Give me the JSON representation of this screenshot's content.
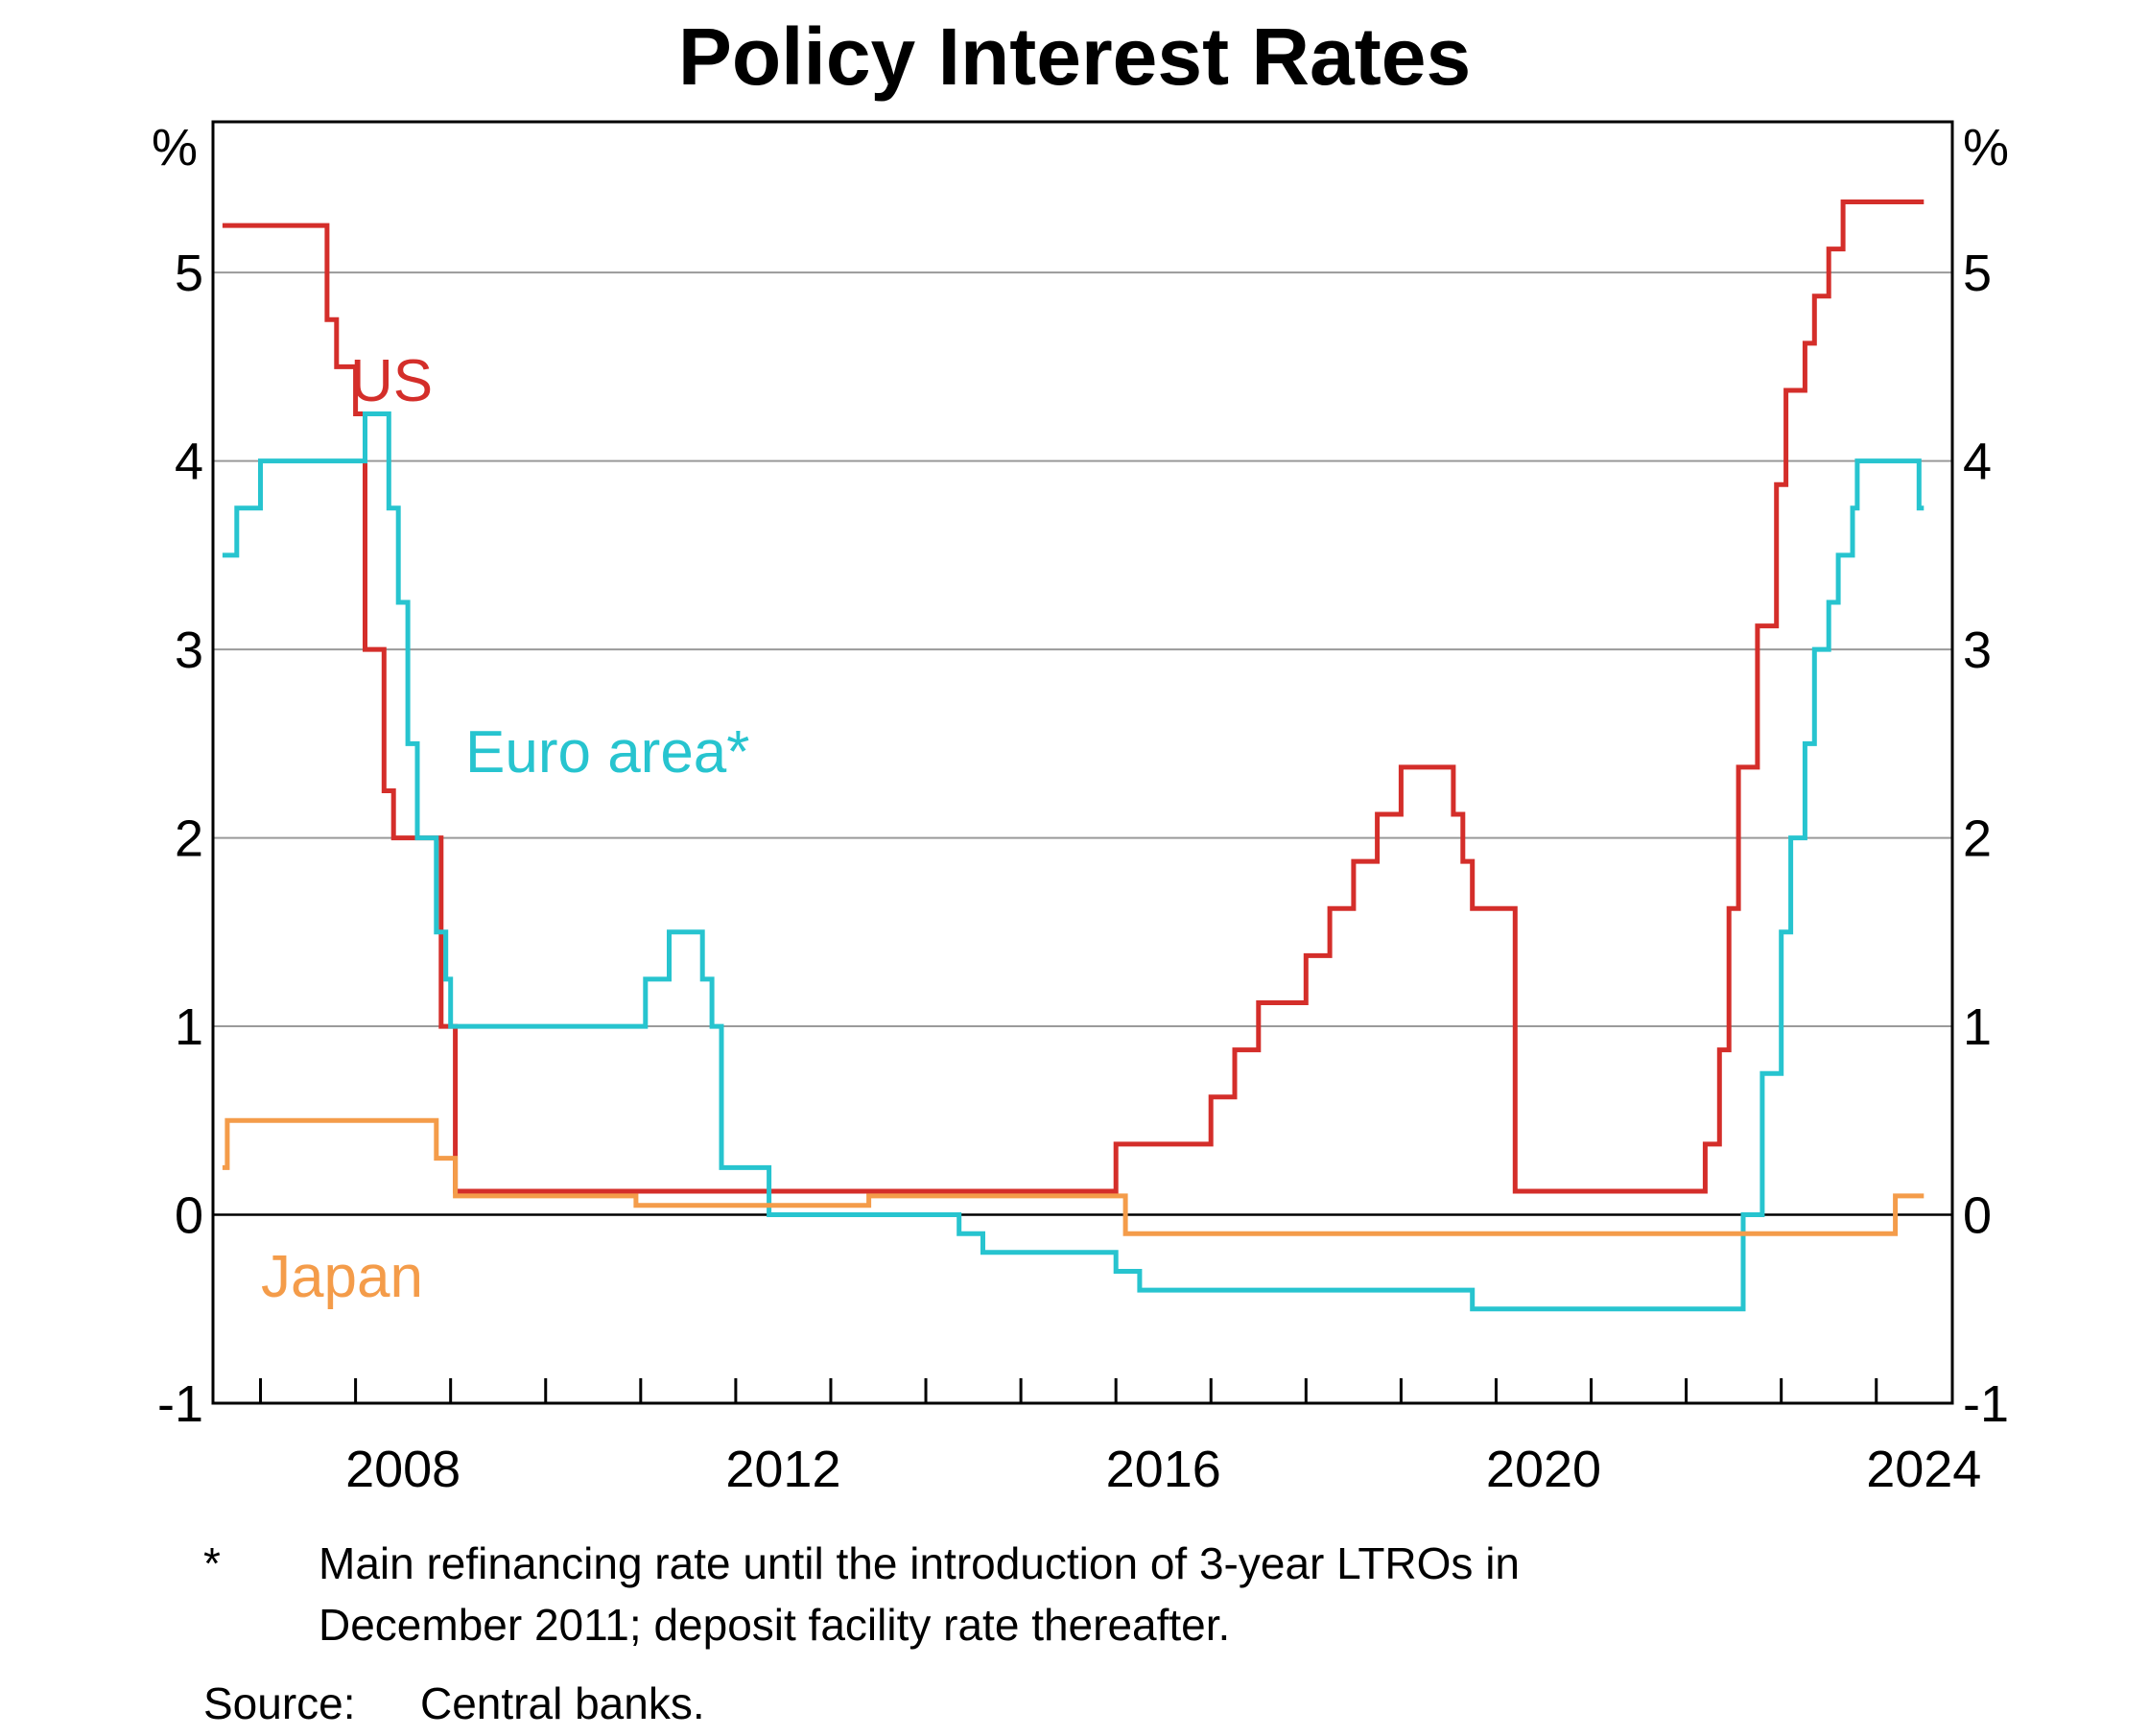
{
  "chart_data": {
    "type": "line",
    "title": "Policy Interest Rates",
    "y_unit_label": "%",
    "ylim": [
      -1,
      5.8
    ],
    "y_ticks": [
      -1,
      0,
      1,
      2,
      3,
      4,
      5
    ],
    "xlim": [
      2006.5,
      2024.8
    ],
    "x_major_tick_labels": [
      "2008",
      "2012",
      "2016",
      "2020",
      "2024"
    ],
    "x_minor_ticks_per_year": true,
    "step_lines": true,
    "grid": "horizontal",
    "series": [
      {
        "name": "US",
        "color": "#d42e2a",
        "points": [
          [
            2006.6,
            5.25
          ],
          [
            2007.7,
            4.75
          ],
          [
            2007.8,
            4.5
          ],
          [
            2008.0,
            4.25
          ],
          [
            2008.1,
            3.0
          ],
          [
            2008.3,
            2.25
          ],
          [
            2008.4,
            2.0
          ],
          [
            2008.9,
            1.0
          ],
          [
            2009.05,
            0.125
          ],
          [
            2016.0,
            0.375
          ],
          [
            2017.0,
            0.625
          ],
          [
            2017.25,
            0.875
          ],
          [
            2017.5,
            1.125
          ],
          [
            2018.0,
            1.375
          ],
          [
            2018.25,
            1.625
          ],
          [
            2018.5,
            1.875
          ],
          [
            2018.75,
            2.125
          ],
          [
            2019.0,
            2.375
          ],
          [
            2019.55,
            2.125
          ],
          [
            2019.65,
            1.875
          ],
          [
            2019.75,
            1.625
          ],
          [
            2020.2,
            0.125
          ],
          [
            2022.2,
            0.375
          ],
          [
            2022.35,
            0.875
          ],
          [
            2022.45,
            1.625
          ],
          [
            2022.55,
            2.375
          ],
          [
            2022.75,
            3.125
          ],
          [
            2022.95,
            3.875
          ],
          [
            2023.05,
            4.375
          ],
          [
            2023.25,
            4.625
          ],
          [
            2023.35,
            4.875
          ],
          [
            2023.5,
            5.125
          ],
          [
            2023.65,
            5.375
          ],
          [
            2024.5,
            5.375
          ]
        ]
      },
      {
        "name": "Euro area*",
        "color": "#27c4cf",
        "points": [
          [
            2006.6,
            3.5
          ],
          [
            2006.75,
            3.75
          ],
          [
            2007.0,
            4.0
          ],
          [
            2008.1,
            4.25
          ],
          [
            2008.35,
            3.75
          ],
          [
            2008.45,
            3.25
          ],
          [
            2008.55,
            2.5
          ],
          [
            2008.65,
            2.0
          ],
          [
            2008.85,
            1.5
          ],
          [
            2008.95,
            1.25
          ],
          [
            2009.0,
            1.0
          ],
          [
            2011.05,
            1.25
          ],
          [
            2011.3,
            1.5
          ],
          [
            2011.65,
            1.25
          ],
          [
            2011.75,
            1.0
          ],
          [
            2011.85,
            0.25
          ],
          [
            2012.35,
            0.0
          ],
          [
            2014.35,
            -0.1
          ],
          [
            2014.6,
            -0.2
          ],
          [
            2016.0,
            -0.3
          ],
          [
            2016.25,
            -0.4
          ],
          [
            2019.75,
            -0.5
          ],
          [
            2022.6,
            0.0
          ],
          [
            2022.8,
            0.75
          ],
          [
            2023.0,
            1.5
          ],
          [
            2023.1,
            2.0
          ],
          [
            2023.25,
            2.5
          ],
          [
            2023.35,
            3.0
          ],
          [
            2023.5,
            3.25
          ],
          [
            2023.6,
            3.5
          ],
          [
            2023.75,
            3.75
          ],
          [
            2023.8,
            4.0
          ],
          [
            2024.45,
            3.75
          ],
          [
            2024.5,
            3.75
          ]
        ]
      },
      {
        "name": "Japan",
        "color": "#f49c4a",
        "points": [
          [
            2006.6,
            0.25
          ],
          [
            2006.65,
            0.5
          ],
          [
            2008.85,
            0.3
          ],
          [
            2009.05,
            0.1
          ],
          [
            2010.95,
            0.05
          ],
          [
            2013.4,
            0.1
          ],
          [
            2016.1,
            -0.1
          ],
          [
            2024.2,
            0.1
          ],
          [
            2024.5,
            0.1
          ]
        ]
      }
    ]
  },
  "footnote": {
    "marker": "*",
    "line1": "Main refinancing rate until the introduction of 3-year LTROs in",
    "line2": "December 2011; deposit facility rate thereafter."
  },
  "source": {
    "label": "Source:",
    "text": "Central banks."
  }
}
